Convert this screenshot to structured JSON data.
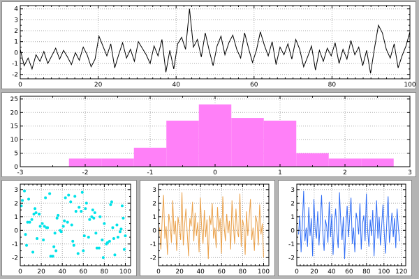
{
  "figure": {
    "background": "#b4b4b4",
    "panel_background": "#ffffff",
    "grid_color": "#a8a8a8",
    "axis_color": "#000000"
  },
  "chart_data": [
    {
      "id": "noise-line-top",
      "type": "line",
      "color": "#000000",
      "x_range": [
        0,
        100
      ],
      "y_range": [
        -2.4,
        4.3
      ],
      "x_ticks": [
        0,
        20,
        40,
        60,
        80,
        100
      ],
      "y_ticks": [
        -2,
        -1,
        0,
        1,
        2,
        3,
        4
      ],
      "x_minor_div": 10,
      "y_minor_div": 2,
      "x_span": [
        0,
        100
      ],
      "y": [
        0.3,
        -1.2,
        -0.5,
        -1.5,
        -0.2,
        -0.8,
        0.1,
        -1.0,
        -0.3,
        0.4,
        -0.6,
        0.2,
        -0.4,
        -1.1,
        0.0,
        -0.7,
        0.5,
        -0.2,
        -1.3,
        -0.6,
        1.5,
        0.6,
        -0.3,
        0.8,
        -1.4,
        -0.2,
        0.9,
        -0.5,
        0.3,
        -0.8,
        1.0,
        0.4,
        -0.2,
        -1.0,
        0.6,
        -0.3,
        1.2,
        -1.8,
        0.2,
        -1.5,
        0.8,
        1.4,
        0.3,
        4.0,
        0.5,
        1.2,
        -0.4,
        1.8,
        0.2,
        -1.2,
        0.6,
        1.5,
        -0.2,
        0.9,
        1.6,
        0.3,
        -0.5,
        1.8,
        0.4,
        -0.9,
        0.2,
        1.9,
        0.7,
        -0.3,
        1.0,
        -1.1,
        0.5,
        -0.2,
        0.8,
        -0.6,
        1.2,
        0.3,
        -1.3,
        -0.4,
        0.6,
        -1.6,
        0.2,
        -0.8,
        0.4,
        -0.3,
        0.9,
        -1.0,
        0.3,
        -0.6,
        1.1,
        -0.2,
        0.5,
        -1.2,
        0.2,
        -1.9,
        0.4,
        2.5,
        1.8,
        0.3,
        -0.5,
        0.8,
        -1.4,
        -0.3,
        0.6,
        1.9
      ]
    },
    {
      "id": "histogram-pink",
      "type": "bar",
      "color": "#ff80f8",
      "x_range": [
        -3,
        3
      ],
      "y_range": [
        0,
        26
      ],
      "x_ticks": [
        -3,
        -2,
        -1,
        0,
        1,
        2,
        3
      ],
      "y_ticks": [
        0,
        5,
        10,
        15,
        20,
        25
      ],
      "x_minor_div": 2,
      "y_minor_div": 1,
      "bin_edges": [
        -2.25,
        -1.75,
        -1.25,
        -0.75,
        -0.25,
        0.25,
        0.75,
        1.25,
        1.75,
        2.25,
        2.75
      ],
      "counts": [
        3,
        3,
        7,
        17,
        23,
        18,
        17,
        5,
        3,
        3
      ]
    },
    {
      "id": "scatter-cyan",
      "type": "scatter",
      "color": "#00e2e8",
      "x_range": [
        0,
        105
      ],
      "y_range": [
        -2.6,
        3.4
      ],
      "x_ticks": [
        0,
        20,
        40,
        60,
        80,
        100
      ],
      "y_ticks": [
        -2,
        -1,
        0,
        1,
        2,
        3
      ],
      "x_minor_div": 5,
      "y_minor_div": 2,
      "x": [
        13,
        50,
        87,
        23,
        60,
        97,
        33,
        70,
        6,
        43,
        80,
        16,
        53,
        90,
        26,
        63,
        100,
        36,
        73,
        9,
        46,
        83,
        19,
        56,
        93,
        29,
        66,
        2,
        39,
        76,
        12,
        49,
        86,
        22,
        59,
        96,
        32,
        69,
        5,
        42,
        79,
        15,
        52,
        89,
        25,
        62,
        99,
        35,
        72,
        8,
        45,
        82,
        18,
        55,
        92,
        28,
        65,
        1,
        38,
        75,
        11,
        48,
        85,
        21,
        58,
        95,
        31,
        68,
        4,
        41,
        78,
        14,
        51,
        88,
        24,
        61,
        98,
        34,
        71,
        7
      ],
      "y": [
        1.2,
        -0.8,
        2.1,
        0.3,
        -1.5,
        1.8,
        -0.2,
        0.9,
        -1.1,
        2.4,
        0.5,
        -0.6,
        1.4,
        -1.8,
        0.2,
        2.0,
        -0.4,
        1.1,
        -1.3,
        0.6,
        2.6,
        -0.9,
        0.3,
        1.7,
        -0.5,
        -1.9,
        0.8,
        2.2,
        -0.1,
        1.0,
        -1.6,
        0.4,
        1.9,
        -0.7,
        2.8,
        0.1,
        -1.2,
        1.5,
        -0.3,
        0.7,
        -2.0,
        1.3,
        2.5,
        -0.6,
        0.2,
        1.6,
        -1.4,
        0.9,
        -0.2,
        2.3,
        0.6,
        -1.0,
        1.2,
        -1.7,
        0.4,
        2.7,
        -0.5,
        1.8,
        0.0,
        -1.3,
        0.8,
        2.1,
        -0.8,
        0.5,
        1.4,
        -0.1,
        -1.9,
        1.0,
        2.9,
        0.3,
        -0.7,
        1.6,
        -1.1,
        0.2,
        2.4,
        -0.4,
        0.9,
        -1.5,
        1.3,
        0.6
      ]
    },
    {
      "id": "line-orange",
      "type": "line",
      "color": "#eaa049",
      "x_range": [
        0,
        105
      ],
      "y_range": [
        -2.6,
        3.4
      ],
      "x_ticks": [
        0,
        20,
        40,
        60,
        80,
        100
      ],
      "y_ticks": [
        -2,
        -1,
        0,
        1,
        2,
        3
      ],
      "x_minor_div": 5,
      "y_minor_div": 2,
      "x_span": [
        1,
        100
      ],
      "y": [
        0.2,
        -1.4,
        0.8,
        2.6,
        -0.6,
        0.3,
        -1.8,
        1.2,
        0.5,
        -0.9,
        2.2,
        -0.3,
        0.7,
        -1.5,
        1.0,
        0.2,
        -0.7,
        2.8,
        -1.1,
        0.4,
        1.6,
        -0.2,
        -1.9,
        0.9,
        0.3,
        2.1,
        -0.8,
        1.3,
        -0.4,
        0.6,
        -1.6,
        2.4,
        0.1,
        -1.0,
        1.5,
        -0.5,
        0.8,
        -2.1,
        1.1,
        0.4,
        2.0,
        -0.6,
        0.2,
        -1.3,
        1.7,
        -0.1,
        0.9,
        -1.7,
        2.5,
        0.3,
        -0.8,
        1.2,
        -0.2,
        0.7,
        -1.4,
        2.2,
        0.5,
        -1.0,
        1.6,
        0.0,
        -0.5,
        2.7,
        -1.2,
        0.8,
        0.3,
        -1.8,
        1.4,
        -0.4,
        0.9,
        2.3,
        -0.7,
        0.2,
        -1.5,
        1.1,
        0.6,
        -1.1,
        1.9,
        -0.3,
        0.5,
        -2.0
      ]
    },
    {
      "id": "line-blue",
      "type": "line",
      "color": "#2e6cf5",
      "x_range": [
        0,
        125
      ],
      "y_range": [
        -2.6,
        3.4
      ],
      "x_ticks": [
        0,
        20,
        40,
        60,
        80,
        100,
        120
      ],
      "y_ticks": [
        -2,
        -1,
        0,
        1,
        2,
        3
      ],
      "x_minor_div": 5,
      "y_minor_div": 2,
      "x_span": [
        2,
        118
      ],
      "y": [
        -0.3,
        1.1,
        -1.6,
        0.5,
        2.9,
        -0.8,
        0.2,
        -1.2,
        1.7,
        -0.4,
        0.9,
        -1.9,
        2.3,
        0.1,
        -0.6,
        1.4,
        -1.1,
        0.7,
        2.6,
        -0.2,
        -1.5,
        0.8,
        0.3,
        -0.9,
        2.1,
        -0.5,
        1.2,
        -1.8,
        0.4,
        1.6,
        -0.1,
        -1.3,
        2.8,
        0.6,
        -0.7,
        1.0,
        -2.1,
        0.3,
        1.8,
        -0.5,
        0.9,
        2.4,
        -1.0,
        0.2,
        -1.6,
        1.3,
        0.7,
        -0.3,
        2.0,
        -1.4,
        0.5,
        1.1,
        -0.8,
        2.7,
        0.0,
        -1.2,
        0.8,
        -0.4,
        1.5,
        -1.9,
        0.3,
        2.2,
        -0.6,
        1.0,
        -1.1,
        0.4,
        1.9,
        -0.2,
        -1.7,
        0.7,
        2.5,
        -0.9,
        0.1,
        1.3,
        -0.5,
        0.9,
        -1.3,
        1.6,
        0.2,
        -0.8
      ]
    }
  ]
}
